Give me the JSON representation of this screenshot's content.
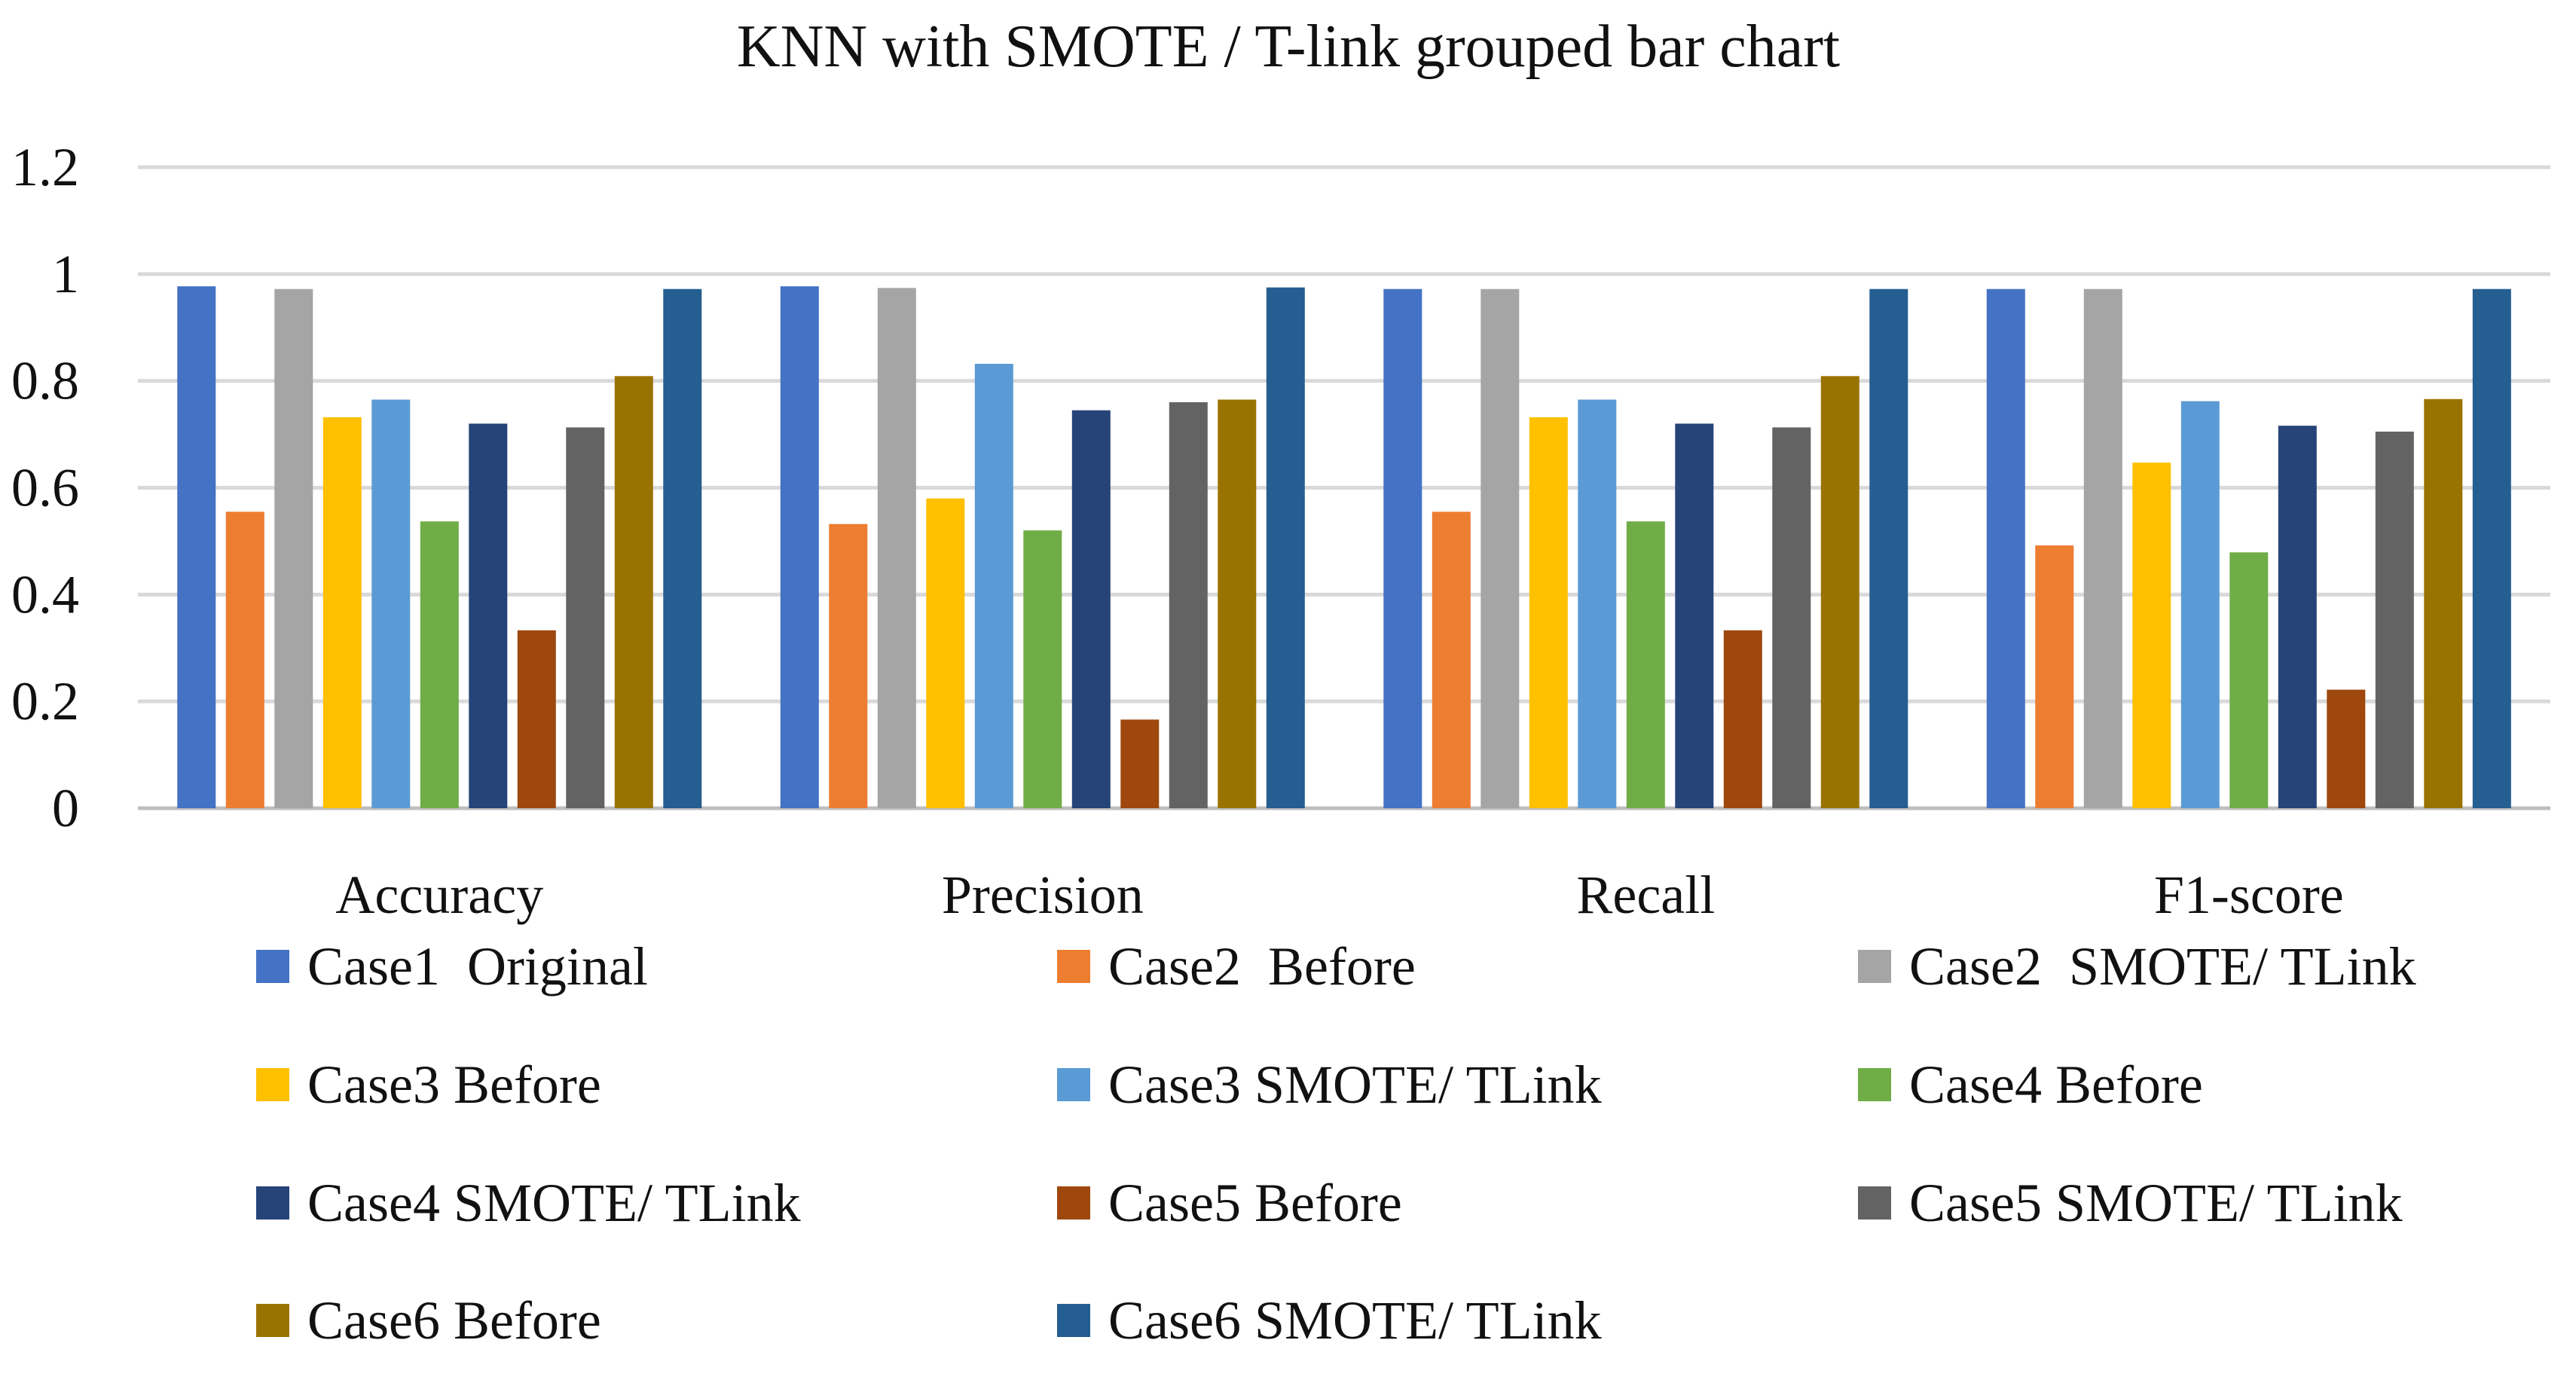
{
  "chart_data": {
    "type": "bar",
    "title": "KNN with SMOTE / T-link grouped bar chart",
    "xlabel": "",
    "ylabel": "",
    "ylim": [
      0,
      1.2
    ],
    "yticks": [
      0,
      0.2,
      0.4,
      0.6,
      0.8,
      1,
      1.2
    ],
    "ytick_labels": [
      "0",
      "0.2",
      "0.4",
      "0.6",
      "0.8",
      "1",
      "1.2"
    ],
    "grid": true,
    "legend_position": "bottom",
    "categories": [
      "Accuracy",
      "Precision",
      "Recall",
      "F1-score"
    ],
    "series": [
      {
        "name": "Case1  Original",
        "color": "#4472C4",
        "values": [
          0.977,
          0.977,
          0.972,
          0.972
        ]
      },
      {
        "name": "Case2  Before",
        "color": "#ED7D31",
        "values": [
          0.555,
          0.532,
          0.555,
          0.492
        ]
      },
      {
        "name": "Case2  SMOTE/ TLink",
        "color": "#A5A5A5",
        "values": [
          0.972,
          0.974,
          0.972,
          0.972
        ]
      },
      {
        "name": "Case3 Before",
        "color": "#FFC000",
        "values": [
          0.732,
          0.58,
          0.732,
          0.647
        ]
      },
      {
        "name": "Case3 SMOTE/ TLink",
        "color": "#5B9BD5",
        "values": [
          0.765,
          0.832,
          0.765,
          0.762
        ]
      },
      {
        "name": "Case4 Before",
        "color": "#70AD47",
        "values": [
          0.537,
          0.52,
          0.537,
          0.479
        ]
      },
      {
        "name": "Case4 SMOTE/ TLink",
        "color": "#264478",
        "values": [
          0.72,
          0.745,
          0.72,
          0.716
        ]
      },
      {
        "name": "Case5 Before",
        "color": "#9E480E",
        "values": [
          0.333,
          0.166,
          0.333,
          0.222
        ]
      },
      {
        "name": "Case5 SMOTE/ TLink",
        "color": "#636363",
        "values": [
          0.713,
          0.76,
          0.713,
          0.705
        ]
      },
      {
        "name": "Case6 Before",
        "color": "#997300",
        "values": [
          0.809,
          0.765,
          0.809,
          0.766
        ]
      },
      {
        "name": "Case6 SMOTE/ TLink",
        "color": "#255E91",
        "values": [
          0.972,
          0.975,
          0.972,
          0.972
        ]
      }
    ]
  }
}
